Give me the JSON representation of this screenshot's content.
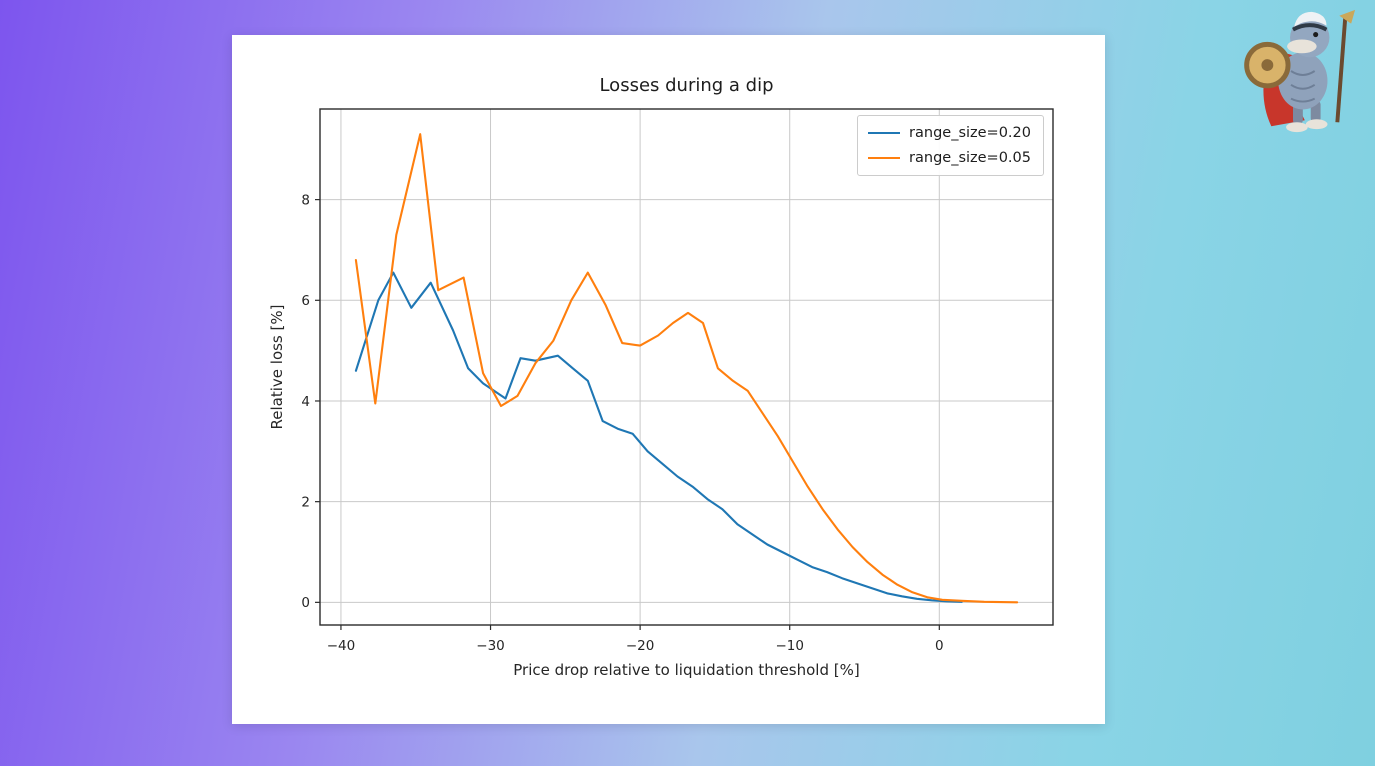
{
  "page": {
    "background_colors": [
      "#7d55ee",
      "#7fd0e0"
    ]
  },
  "mascot": {
    "description": "platypus-warrior-mascot"
  },
  "chart_data": {
    "type": "line",
    "title": "Losses during a dip",
    "xlabel": "Price drop relative to liquidation threshold [%]",
    "ylabel": "Relative loss [%]",
    "xlim": [
      -41.4,
      7.6
    ],
    "ylim": [
      -0.45,
      9.8
    ],
    "xticks": [
      -40,
      -30,
      -20,
      -10,
      0
    ],
    "xtick_labels": [
      "−40",
      "−30",
      "−20",
      "−10",
      "0"
    ],
    "yticks": [
      0,
      2,
      4,
      6,
      8
    ],
    "ytick_labels": [
      "0",
      "2",
      "4",
      "6",
      "8"
    ],
    "grid": true,
    "grid_color": "#c9c9c9",
    "border_color": "#2b2b2b",
    "legend_position": "upper right",
    "series": [
      {
        "name": "range_size=0.20",
        "color": "#1f77b4",
        "points": [
          [
            -39,
            4.6
          ],
          [
            -37.5,
            6.0
          ],
          [
            -36.5,
            6.55
          ],
          [
            -35.3,
            5.85
          ],
          [
            -34,
            6.35
          ],
          [
            -32.5,
            5.4
          ],
          [
            -31.5,
            4.65
          ],
          [
            -30.5,
            4.35
          ],
          [
            -29,
            4.05
          ],
          [
            -28,
            4.85
          ],
          [
            -27,
            4.8
          ],
          [
            -25.5,
            4.9
          ],
          [
            -24.5,
            4.65
          ],
          [
            -23.5,
            4.4
          ],
          [
            -22.5,
            3.6
          ],
          [
            -21.5,
            3.45
          ],
          [
            -20.5,
            3.35
          ],
          [
            -19.5,
            3.0
          ],
          [
            -18.5,
            2.75
          ],
          [
            -17.5,
            2.5
          ],
          [
            -16.5,
            2.3
          ],
          [
            -15.5,
            2.05
          ],
          [
            -14.5,
            1.85
          ],
          [
            -13.5,
            1.55
          ],
          [
            -12.5,
            1.35
          ],
          [
            -11.5,
            1.15
          ],
          [
            -10.5,
            1.0
          ],
          [
            -9.5,
            0.85
          ],
          [
            -8.5,
            0.7
          ],
          [
            -7.5,
            0.6
          ],
          [
            -6.5,
            0.48
          ],
          [
            -5.5,
            0.38
          ],
          [
            -4.5,
            0.28
          ],
          [
            -3.5,
            0.18
          ],
          [
            -2.5,
            0.12
          ],
          [
            -1.5,
            0.07
          ],
          [
            -0.5,
            0.04
          ],
          [
            0.5,
            0.02
          ],
          [
            1.5,
            0.01
          ]
        ]
      },
      {
        "name": "range_size=0.05",
        "color": "#ff7f0e",
        "points": [
          [
            -39,
            6.8
          ],
          [
            -37.7,
            3.95
          ],
          [
            -36.3,
            7.3
          ],
          [
            -34.7,
            9.3
          ],
          [
            -33.5,
            6.2
          ],
          [
            -31.8,
            6.45
          ],
          [
            -30.5,
            4.55
          ],
          [
            -29.3,
            3.9
          ],
          [
            -28.2,
            4.1
          ],
          [
            -27,
            4.75
          ],
          [
            -25.8,
            5.2
          ],
          [
            -24.6,
            6.0
          ],
          [
            -23.5,
            6.55
          ],
          [
            -22.3,
            5.9
          ],
          [
            -21.2,
            5.15
          ],
          [
            -20,
            5.1
          ],
          [
            -18.8,
            5.3
          ],
          [
            -17.8,
            5.55
          ],
          [
            -16.8,
            5.75
          ],
          [
            -15.8,
            5.55
          ],
          [
            -14.8,
            4.65
          ],
          [
            -13.8,
            4.4
          ],
          [
            -12.8,
            4.2
          ],
          [
            -11.8,
            3.75
          ],
          [
            -10.8,
            3.3
          ],
          [
            -9.8,
            2.8
          ],
          [
            -8.8,
            2.3
          ],
          [
            -7.8,
            1.85
          ],
          [
            -6.8,
            1.45
          ],
          [
            -5.8,
            1.1
          ],
          [
            -4.8,
            0.8
          ],
          [
            -3.8,
            0.55
          ],
          [
            -2.8,
            0.35
          ],
          [
            -1.8,
            0.2
          ],
          [
            -0.8,
            0.1
          ],
          [
            0.2,
            0.05
          ],
          [
            1.5,
            0.03
          ],
          [
            3,
            0.01
          ],
          [
            5.2,
            0.0
          ]
        ]
      }
    ]
  }
}
